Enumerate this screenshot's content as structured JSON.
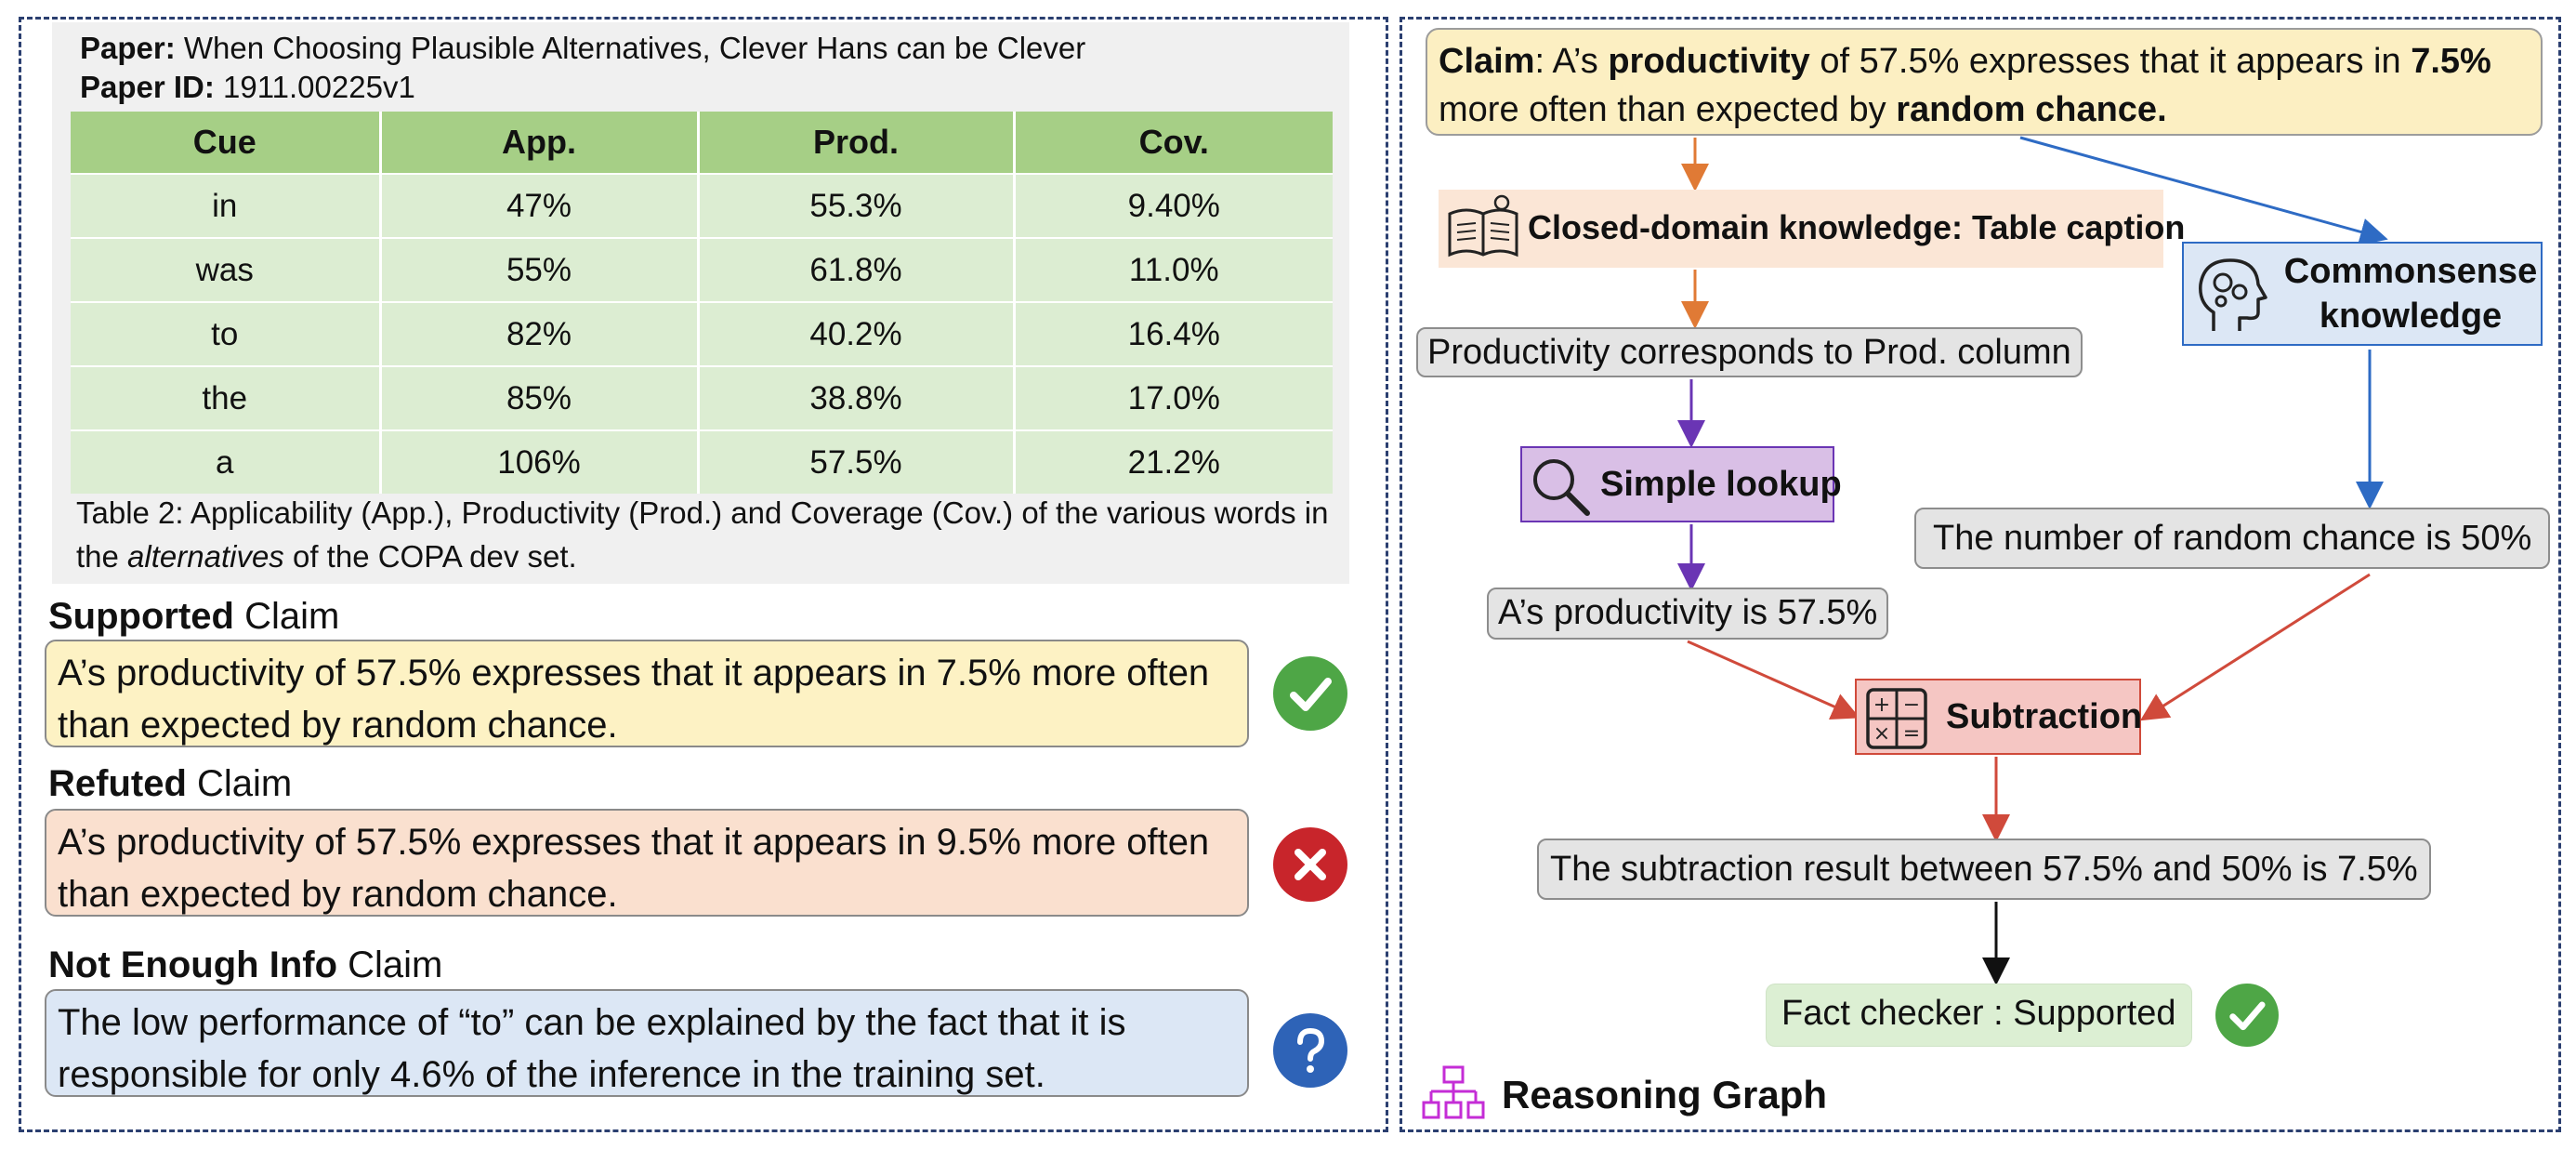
{
  "paper": {
    "label": "Paper:",
    "title": "When Choosing Plausible Alternatives, Clever Hans can be Clever",
    "id_label": "Paper ID:",
    "id": "1911.00225v1"
  },
  "table": {
    "headers": [
      "Cue",
      "App.",
      "Prod.",
      "Cov."
    ],
    "rows": [
      [
        "in",
        "47%",
        "55.3%",
        "9.40%"
      ],
      [
        "was",
        "55%",
        "61.8%",
        "11.0%"
      ],
      [
        "to",
        "82%",
        "40.2%",
        "16.4%"
      ],
      [
        "the",
        "85%",
        "38.8%",
        "17.0%"
      ],
      [
        "a",
        "106%",
        "57.5%",
        "21.2%"
      ]
    ],
    "caption_part1": "Table 2: Applicability (App.), Productivity (Prod.) and Coverage (Cov.) of the various words in the ",
    "caption_italic": "alternatives",
    "caption_part2": " of the COPA dev set."
  },
  "claims": {
    "supported": {
      "head_bold": "Supported",
      "head_rest": " Claim",
      "text": "A’s productivity of 57.5% expresses that it appears in 7.5% more often than expected by random chance.",
      "color": "#fdf2c4",
      "icon": "check-icon",
      "icon_color": "#4ea646"
    },
    "refuted": {
      "head_bold": "Refuted",
      "head_rest": " Claim",
      "text": "A’s productivity of 57.5% expresses that it appears in 9.5% more often than expected by random chance.",
      "color": "#fae0cf",
      "icon": "cross-icon",
      "icon_color": "#c8252b"
    },
    "nei": {
      "head_bold": "Not Enough Info",
      "head_rest": " Claim",
      "text": "The low performance of “to” can be explained by the fact that it is responsible for only 4.6% of the inference in the training set.",
      "color": "#dce7f5",
      "icon": "question-icon",
      "icon_color": "#2e63b7"
    }
  },
  "graph": {
    "claim_label": "Claim",
    "claim_seg1": ": A’s ",
    "claim_bold1": "productivity",
    "claim_seg2": " of 57.5% expresses that it appears in ",
    "claim_bold2": "7.5%",
    "claim_seg3": " more often than expected by ",
    "claim_bold3": "random chance.",
    "closed_domain": "Closed-domain knowledge: Table caption",
    "commonsense": "Commonsense knowledge",
    "productivity_node": "Productivity corresponds to Prod. column",
    "simple_lookup": "Simple lookup",
    "random_chance_node": "The number of random chance is 50%",
    "a_productivity_node": "A’s productivity is 57.5%",
    "subtraction": "Subtraction",
    "subtraction_result": "The subtraction result between 57.5% and 50% is 7.5%",
    "fact_checker": "Fact checker : Supported",
    "reasoning_graph": "Reasoning Graph"
  },
  "colors": {
    "orange_arrow": "#e07a35",
    "blue_arrow": "#2e6bc4",
    "purple_arrow": "#6a35b4",
    "red_arrow": "#d04a3b",
    "black_arrow": "#111111",
    "closed_domain_bg": "#fbe6d6",
    "commonsense_bg": "#dce7f5",
    "lookup_bg": "#d9bfe6",
    "subtraction_bg": "#f5c6c3",
    "fact_bg": "#dcefd3",
    "graph_icon": "#c42dd6"
  }
}
